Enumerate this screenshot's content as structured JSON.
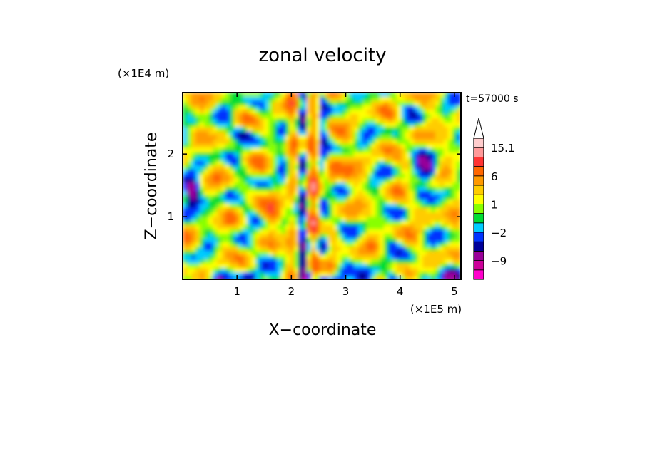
{
  "chart_data": {
    "type": "heatmap",
    "title": "zonal velocity",
    "xlabel": "X−coordinate",
    "ylabel": "Z−coordinate",
    "x_unit": "(×1E5 m)",
    "y_unit": "(×1E4 m)",
    "time_label": "t=57000 s",
    "xlim": [
      0.0,
      5.12
    ],
    "ylim": [
      0.0,
      2.98
    ],
    "x_ticks": [
      1,
      2,
      3,
      4,
      5
    ],
    "y_ticks": [
      1,
      2
    ],
    "colorbar": {
      "levels": [
        -15.1,
        -12,
        -9,
        -6,
        -4,
        -2,
        -1,
        0,
        1,
        2,
        4,
        6,
        9,
        12,
        15.1
      ],
      "colors": [
        "#ff00cc",
        "#cc0099",
        "#990099",
        "#000099",
        "#0033ff",
        "#00ccff",
        "#00dd33",
        "#88ff00",
        "#ffff00",
        "#ffcc00",
        "#ff9900",
        "#ff6600",
        "#ff3333",
        "#ff9999",
        "#ffcccc"
      ],
      "extend_max": true,
      "tick_labels": [
        {
          "value": 15.1,
          "label": "15.1"
        },
        {
          "value": 6,
          "label": "6"
        },
        {
          "value": 1,
          "label": "1"
        },
        {
          "value": -2,
          "label": "−2"
        },
        {
          "value": -9,
          "label": "−9"
        }
      ]
    }
  }
}
